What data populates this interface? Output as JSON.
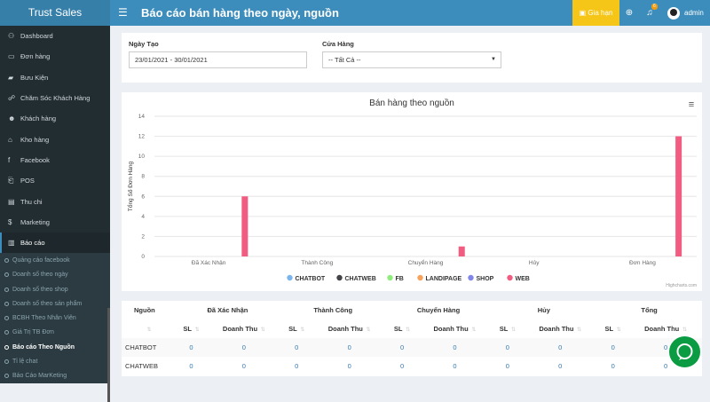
{
  "header": {
    "brand": "Trust Sales",
    "menu_icon": "hamburger-icon",
    "title": "Báo cáo bán hàng theo ngày, nguồn",
    "renew_label": "Gia hạn",
    "notification_count": "6",
    "user": "admin"
  },
  "sidebar": {
    "items": [
      {
        "label": "Dashboard",
        "icon": "dashboard-icon",
        "glyph": "⚇"
      },
      {
        "label": "Đơn hàng",
        "icon": "cart-icon",
        "glyph": "▭"
      },
      {
        "label": "Bưu Kiện",
        "icon": "truck-icon",
        "glyph": "▰"
      },
      {
        "label": "Chăm Sóc Khách Hàng",
        "icon": "handshake-icon",
        "glyph": "☍"
      },
      {
        "label": "Khách hàng",
        "icon": "users-icon",
        "glyph": "☻"
      },
      {
        "label": "Kho hàng",
        "icon": "bank-icon",
        "glyph": "⌂"
      },
      {
        "label": "Facebook",
        "icon": "facebook-icon",
        "glyph": "f"
      },
      {
        "label": "POS",
        "icon": "pos-icon",
        "glyph": "⎗"
      },
      {
        "label": "Thu chi",
        "icon": "money-icon",
        "glyph": "▤"
      },
      {
        "label": "Marketing",
        "icon": "dollar-icon",
        "glyph": "$"
      },
      {
        "label": "Báo cáo",
        "icon": "bar-chart-icon",
        "glyph": "▥"
      }
    ],
    "sub_items": [
      "Quảng cáo facebook",
      "Doanh số theo ngày",
      "Doanh số theo shop",
      "Doanh số theo sản phẩm",
      "BCBH Theo Nhân Viên",
      "Giá Trị TB Đơn",
      "Báo cáo Theo Nguồn",
      "Tỉ lệ chat",
      "Báo Cáo MarKeting"
    ]
  },
  "filters": {
    "date_label": "Ngày Tạo",
    "date_value": "23/01/2021 - 30/01/2021",
    "store_label": "Cửa Hàng",
    "store_value": "-- Tất Cả --"
  },
  "chart_data": {
    "type": "bar",
    "title": "Bán hàng theo nguồn",
    "ylabel": "Tổng Số Đơn Hàng",
    "ylim": [
      0,
      14
    ],
    "yticks": [
      0,
      2,
      4,
      6,
      8,
      10,
      12,
      14
    ],
    "categories": [
      "Đã Xác Nhận",
      "Thành Công",
      "Chuyển Hàng",
      "Hủy",
      "Đơn Hàng"
    ],
    "series": [
      {
        "name": "CHATBOT",
        "color": "#7cb5ec",
        "values": [
          0,
          0,
          0,
          0,
          0
        ]
      },
      {
        "name": "CHATWEB",
        "color": "#434348",
        "values": [
          0,
          0,
          0,
          0,
          0
        ]
      },
      {
        "name": "FB",
        "color": "#90ed7d",
        "values": [
          0,
          0,
          0,
          0,
          0
        ]
      },
      {
        "name": "LANDIPAGE",
        "color": "#f7a35c",
        "values": [
          0,
          0,
          0,
          0,
          0
        ]
      },
      {
        "name": "SHOP",
        "color": "#8085e9",
        "values": [
          0,
          0,
          0,
          0,
          0
        ]
      },
      {
        "name": "WEB",
        "color": "#f15c80",
        "values": [
          6,
          0,
          1,
          0,
          12
        ]
      }
    ],
    "legend_position": "bottom",
    "credits": "Highcharts.com",
    "menu_icon": "hamburger-icon"
  },
  "table": {
    "source_header": "Nguồn",
    "groups": [
      "Đã Xác Nhận",
      "Thành Công",
      "Chuyển Hàng",
      "Hủy",
      "Tổng"
    ],
    "sl_header": "SL",
    "rev_header": "Doanh Thu",
    "rows": [
      {
        "source": "CHATBOT",
        "values": [
          "0",
          "0",
          "0",
          "0",
          "0",
          "0",
          "0",
          "0",
          "0",
          "0"
        ]
      },
      {
        "source": "CHATWEB",
        "values": [
          "0",
          "0",
          "0",
          "0",
          "0",
          "0",
          "0",
          "0",
          "0",
          "0"
        ]
      }
    ]
  },
  "chat_widget_icon": "chat-bubble-icon"
}
